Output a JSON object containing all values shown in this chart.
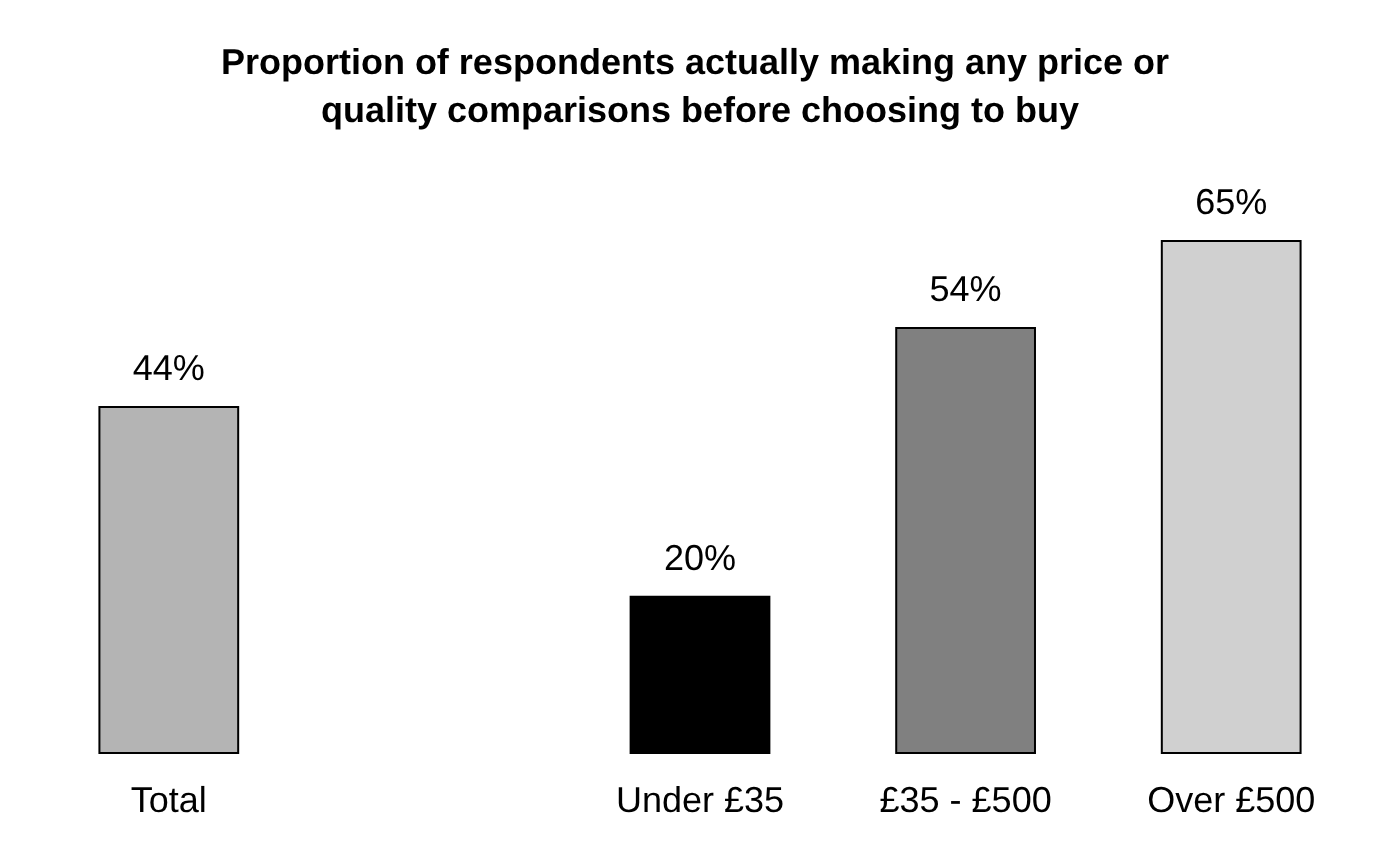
{
  "chart_data": {
    "type": "bar",
    "title": "Proportion of respondents actually making any price or quality comparisons before choosing to buy",
    "categories": [
      "Total",
      null,
      "Under £35",
      "£35 - £500",
      "Over £500"
    ],
    "values": [
      44,
      null,
      20,
      54,
      65
    ],
    "colors": [
      "#b4b4b4",
      "#ffffff",
      "#000000",
      "#808080",
      "#d0d0d0"
    ],
    "value_labels": [
      "44%",
      null,
      "20%",
      "54%",
      "65%"
    ]
  }
}
